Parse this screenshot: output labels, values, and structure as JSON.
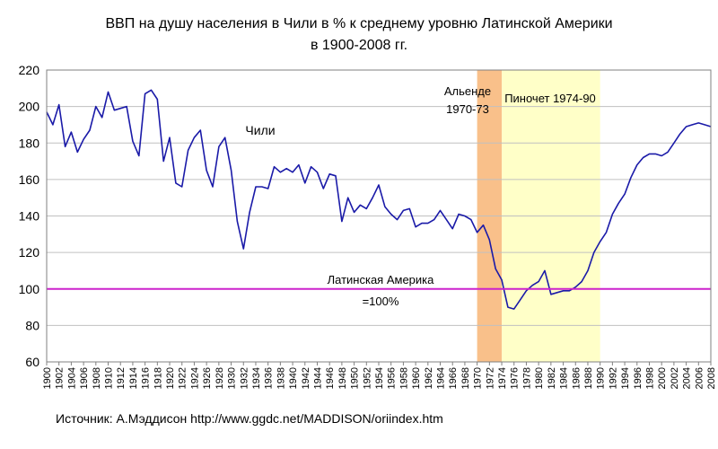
{
  "title_line1": "ВВП на душу населения в Чили в % к среднему уровню Латинской Америки",
  "title_line2": "в 1900-2008 гг.",
  "source": "Источник: А.Мэддисон http://www.ggdc.net/MADDISON/oriindex.htm",
  "colors": {
    "chile_line": "#1a1aa8",
    "latam_line": "#cc22cc",
    "allende_band": "#f9c08a",
    "pinochet_band": "#ffffc8",
    "grid": "#c0c0c0"
  },
  "chart_data": {
    "type": "line",
    "xlim": [
      1900,
      2008
    ],
    "ylim": [
      60,
      220
    ],
    "y_ticks": [
      60,
      80,
      100,
      120,
      140,
      160,
      180,
      200,
      220
    ],
    "x_ticks": [
      "1900",
      "1902",
      "1904",
      "1906",
      "1908",
      "1910",
      "1912",
      "1914",
      "1916",
      "1918",
      "1920",
      "1922",
      "1924",
      "1926",
      "1928",
      "1930",
      "1932",
      "1934",
      "1936",
      "1938",
      "1940",
      "1942",
      "1944",
      "1946",
      "1948",
      "1950",
      "1952",
      "1954",
      "1956",
      "1958",
      "1960",
      "1962",
      "1964",
      "1966",
      "1968",
      "1970",
      "1972",
      "1974",
      "1976",
      "1978",
      "1980",
      "1982",
      "1984",
      "1986",
      "1988",
      "1990",
      "1992",
      "1994",
      "1996",
      "1998",
      "2000",
      "2002",
      "2004",
      "2006",
      "2008"
    ],
    "grid": "horizontal",
    "series": [
      {
        "name": "Чили",
        "x": [
          1900,
          1901,
          1902,
          1903,
          1904,
          1905,
          1906,
          1907,
          1908,
          1909,
          1910,
          1911,
          1912,
          1913,
          1914,
          1915,
          1916,
          1917,
          1918,
          1919,
          1920,
          1921,
          1922,
          1923,
          1924,
          1925,
          1926,
          1927,
          1928,
          1929,
          1930,
          1931,
          1932,
          1933,
          1934,
          1935,
          1936,
          1937,
          1938,
          1939,
          1940,
          1941,
          1942,
          1943,
          1944,
          1945,
          1946,
          1947,
          1948,
          1949,
          1950,
          1951,
          1952,
          1953,
          1954,
          1955,
          1956,
          1957,
          1958,
          1959,
          1960,
          1961,
          1962,
          1963,
          1964,
          1965,
          1966,
          1967,
          1968,
          1969,
          1970,
          1971,
          1972,
          1973,
          1974,
          1975,
          1976,
          1977,
          1978,
          1979,
          1980,
          1981,
          1982,
          1983,
          1984,
          1985,
          1986,
          1987,
          1988,
          1989,
          1990,
          1991,
          1992,
          1993,
          1994,
          1995,
          1996,
          1997,
          1998,
          1999,
          2000,
          2001,
          2002,
          2003,
          2004,
          2005,
          2006,
          2007,
          2008
        ],
        "y": [
          197,
          190,
          201,
          178,
          186,
          175,
          182,
          187,
          200,
          194,
          208,
          198,
          199,
          200,
          181,
          173,
          207,
          209,
          204,
          170,
          183,
          158,
          156,
          176,
          183,
          187,
          165,
          156,
          178,
          183,
          165,
          137,
          122,
          142,
          156,
          156,
          155,
          167,
          164,
          166,
          164,
          168,
          158,
          167,
          164,
          155,
          163,
          162,
          137,
          150,
          142,
          146,
          144,
          150,
          157,
          145,
          141,
          138,
          143,
          144,
          134,
          136,
          136,
          138,
          143,
          138,
          133,
          141,
          140,
          138,
          131,
          135,
          127,
          111,
          105,
          90,
          89,
          94,
          99,
          102,
          104,
          110,
          97,
          98,
          99,
          99,
          101,
          104,
          110,
          120,
          126,
          131,
          141,
          147,
          152,
          161,
          168,
          172,
          174,
          174,
          173,
          175,
          180,
          185,
          189,
          190,
          191,
          190,
          189
        ]
      },
      {
        "name": "Латинская Америка",
        "x": [
          1900,
          2008
        ],
        "y": [
          100,
          100
        ]
      }
    ],
    "periods": [
      {
        "label_line1": "Альенде",
        "label_line2": "1970-73",
        "start": 1970,
        "end": 1974
      },
      {
        "label": "Пиночет 1974-90",
        "start": 1974,
        "end": 1990
      }
    ],
    "annotations": {
      "chile_label": "Чили",
      "latam_label_line1": "Латинская Америка",
      "latam_label_line2": "=100%"
    }
  }
}
